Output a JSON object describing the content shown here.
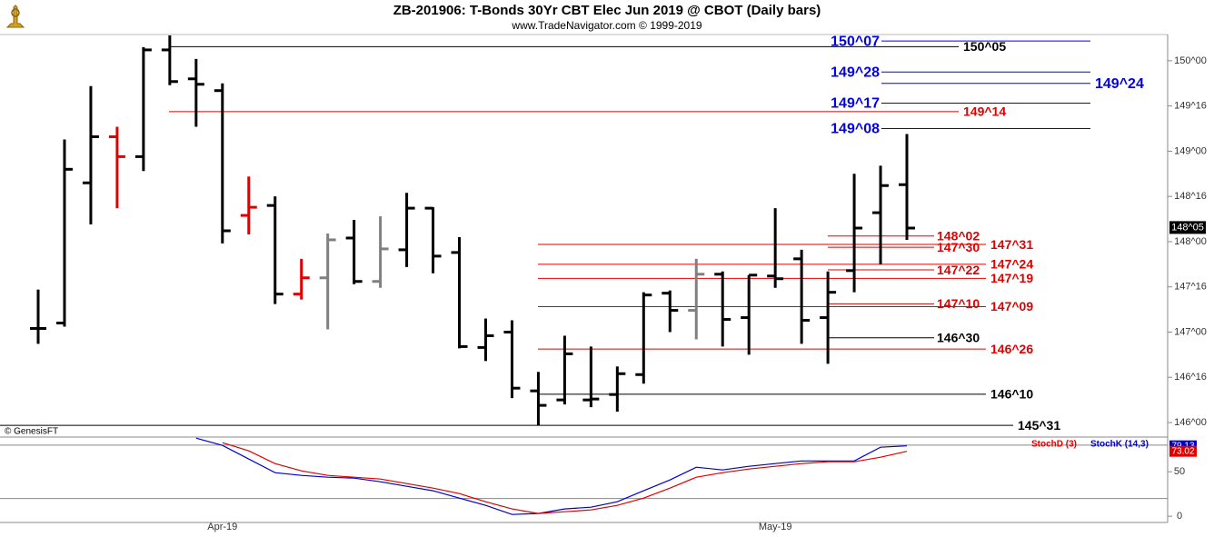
{
  "chart_data": [
    {
      "type": "ohlc",
      "title": "ZB-201906:  T-Bonds 30Yr CBT Elec Jun 2019 @ CBOT  (Daily bars)",
      "subtitle": "www.TradeNavigator.com © 1999-2019",
      "credit": "© GenesisFT",
      "open": [
        147.04,
        147.1,
        148.65,
        149.16,
        148.94,
        150.12,
        149.8,
        149.67,
        148.29,
        148.4,
        147.42,
        147.6,
        148.04,
        147.56,
        147.91,
        148.37,
        147.88,
        146.83,
        147.0,
        146.35,
        146.25,
        146.25,
        146.31,
        146.53,
        147.43,
        147.24,
        147.64,
        147.16,
        147.62,
        147.81,
        147.16,
        147.68,
        148.32,
        148.63
      ],
      "high": [
        147.47,
        149.13,
        149.72,
        149.27,
        150.15,
        150.28,
        150.02,
        149.75,
        148.72,
        148.5,
        147.81,
        148.09,
        148.24,
        148.28,
        148.54,
        148.38,
        148.05,
        147.15,
        147.13,
        146.56,
        146.96,
        146.84,
        146.62,
        147.44,
        147.46,
        147.81,
        147.67,
        147.63,
        148.37,
        147.91,
        147.67,
        148.75,
        148.84,
        149.19
      ],
      "low": [
        146.87,
        147.06,
        148.19,
        148.37,
        148.78,
        149.73,
        149.27,
        147.98,
        148.08,
        147.31,
        147.36,
        147.03,
        147.53,
        147.49,
        147.72,
        147.65,
        146.82,
        146.68,
        146.27,
        145.97,
        146.2,
        146.17,
        146.12,
        146.43,
        147.0,
        146.92,
        146.84,
        146.75,
        147.49,
        146.87,
        146.65,
        147.44,
        147.75,
        148.02
      ],
      "close": [
        147.04,
        148.8,
        149.16,
        148.94,
        150.12,
        149.77,
        149.74,
        148.12,
        148.38,
        147.42,
        147.6,
        148.02,
        147.56,
        147.92,
        148.37,
        147.84,
        146.84,
        146.96,
        146.38,
        146.19,
        146.76,
        146.26,
        146.54,
        147.41,
        147.24,
        147.64,
        147.14,
        147.63,
        147.59,
        147.13,
        147.44,
        148.15,
        148.62,
        148.15
      ],
      "bar_colors": [
        "#000000",
        "#000000",
        "#000000",
        "#e00000",
        "#000000",
        "#000000",
        "#000000",
        "#000000",
        "#e00000",
        "#000000",
        "#e00000",
        "#808080",
        "#000000",
        "#808080",
        "#000000",
        "#000000",
        "#000000",
        "#000000",
        "#000000",
        "#000000",
        "#000000",
        "#000000",
        "#000000",
        "#000000",
        "#000000",
        "#808080",
        "#000000",
        "#000000",
        "#000000",
        "#000000",
        "#000000",
        "#000000",
        "#000000",
        "#000000"
      ],
      "ylim": [
        145.95,
        150.29
      ],
      "yticks": [
        {
          "value": 146,
          "label": "146^00"
        },
        {
          "value": 146.5,
          "label": "146^16"
        },
        {
          "value": 147,
          "label": "147^00"
        },
        {
          "value": 147.5,
          "label": "147^16"
        },
        {
          "value": 148,
          "label": "148^00"
        },
        {
          "value": 148.5,
          "label": "148^16"
        },
        {
          "value": 149,
          "label": "149^00"
        },
        {
          "value": 149.5,
          "label": "149^16"
        },
        {
          "value": 150,
          "label": "150^00"
        }
      ],
      "last_price": {
        "value": 148.15625,
        "label": "148^05"
      },
      "levels": [
        {
          "value": 150.21875,
          "label": "150^07",
          "color": "#0000ee"
        },
        {
          "value": 150.15625,
          "label": "150^05",
          "color": "#000000"
        },
        {
          "value": 149.875,
          "label": "149^28",
          "color": "#0000ee"
        },
        {
          "value": 149.75,
          "label": "149^24",
          "color": "#0000ee"
        },
        {
          "value": 149.53125,
          "label": "149^17",
          "color": "#0000ee"
        },
        {
          "value": 149.4375,
          "label": "149^14",
          "color": "#e00000"
        },
        {
          "value": 149.25,
          "label": "149^08",
          "color": "#0000ee"
        },
        {
          "value": 148.0625,
          "label": "148^02",
          "color": "#e00000"
        },
        {
          "value": 147.96875,
          "label": "147^31",
          "color": "#e00000"
        },
        {
          "value": 147.9375,
          "label": "147^30",
          "color": "#e00000"
        },
        {
          "value": 147.75,
          "label": "147^24",
          "color": "#e00000"
        },
        {
          "value": 147.6875,
          "label": "147^22",
          "color": "#e00000"
        },
        {
          "value": 147.59375,
          "label": "147^19",
          "color": "#e00000"
        },
        {
          "value": 147.3125,
          "label": "147^10",
          "color": "#e00000"
        },
        {
          "value": 147.28125,
          "label": "147^09",
          "color": "#e00000"
        },
        {
          "value": 146.9375,
          "label": "146^30",
          "color": "#000000"
        },
        {
          "value": 146.8125,
          "label": "146^26",
          "color": "#e00000"
        },
        {
          "value": 146.3125,
          "label": "146^10",
          "color": "#000000"
        },
        {
          "value": 145.96875,
          "label": "145^31",
          "color": "#000000"
        }
      ]
    },
    {
      "type": "line",
      "categories": [
        null,
        null,
        null,
        null,
        null,
        null,
        null,
        "Apr-19",
        null,
        null,
        null,
        null,
        null,
        null,
        null,
        null,
        null,
        null,
        null,
        null,
        null,
        null,
        null,
        null,
        null,
        null,
        null,
        null,
        "May-19",
        null,
        null,
        null,
        null,
        null
      ],
      "series": [
        {
          "name": "StochK (14,3)",
          "color": "#0000cc",
          "values": [
            null,
            null,
            null,
            null,
            null,
            null,
            87.8,
            79.6,
            64.3,
            49,
            45.9,
            43.9,
            42.9,
            38.8,
            33.7,
            28.6,
            20.4,
            12.2,
            2,
            3.1,
            8.2,
            10.2,
            16.3,
            28.6,
            40.8,
            55.1,
            52,
            56.1,
            59.2,
            62.2,
            62.2,
            62.2,
            77.6,
            79.13
          ]
        },
        {
          "name": "StochD (3)",
          "color": "#e00000",
          "values": [
            null,
            null,
            null,
            null,
            null,
            null,
            null,
            82.7,
            73.5,
            59.2,
            51,
            45.9,
            43.9,
            41.8,
            36.7,
            31.6,
            25.5,
            16.3,
            8.2,
            3.1,
            5.1,
            7.1,
            12.2,
            20.4,
            31.6,
            43.9,
            49,
            53.1,
            56.1,
            59.2,
            61.2,
            61.2,
            66.3,
            73.02
          ]
        }
      ],
      "ylim": [
        -7,
        88
      ],
      "yticks": [
        0,
        50
      ],
      "guide_lines": [
        20,
        80
      ]
    }
  ]
}
